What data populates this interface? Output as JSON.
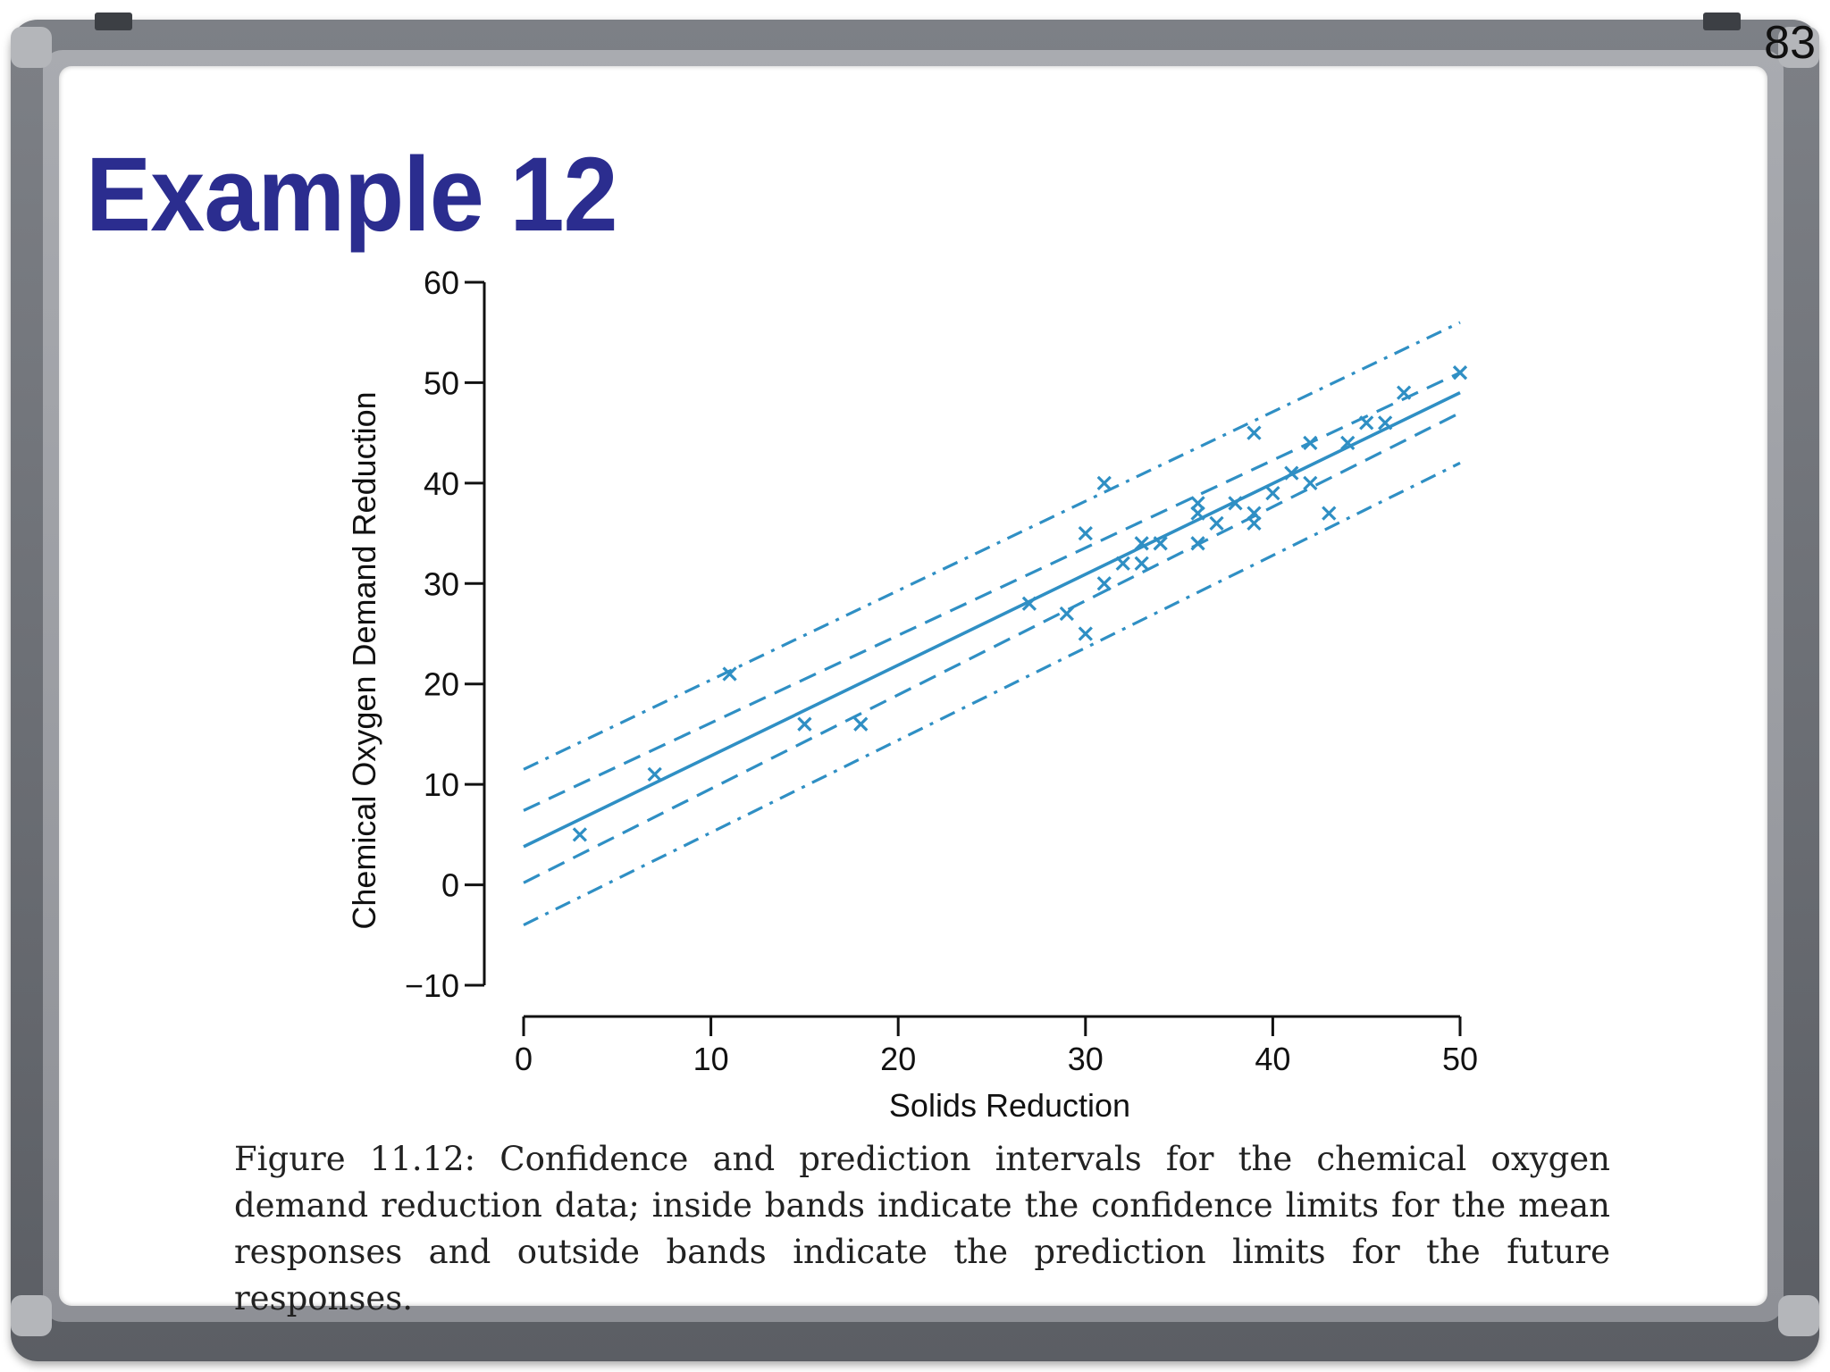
{
  "page_number": "83",
  "slide_title": "Example 12",
  "caption": "Figure 11.12: Confidence and prediction intervals for the chemical oxygen demand reduction data; inside bands indicate the confidence limits for the mean responses and outside bands indicate the prediction limits for the future responses.",
  "colors": {
    "title": "#2b2d8f",
    "series": "#2f8fc4",
    "axis": "#111111"
  },
  "chart_data": {
    "type": "scatter",
    "title": "",
    "xlabel": "Solids Reduction",
    "ylabel": "Chemical Oxygen Demand Reduction",
    "xlim": [
      0,
      50
    ],
    "ylim": [
      -10,
      60
    ],
    "x_ticks": [
      0,
      10,
      20,
      30,
      40,
      50
    ],
    "y_ticks": [
      -10,
      0,
      10,
      20,
      30,
      40,
      50,
      60
    ],
    "x_tick_labels": [
      "0",
      "10",
      "20",
      "30",
      "40",
      "50"
    ],
    "y_tick_labels": [
      "−10",
      "0",
      "10",
      "20",
      "30",
      "40",
      "50",
      "60"
    ],
    "grid": false,
    "points": [
      [
        3,
        5
      ],
      [
        7,
        11
      ],
      [
        11,
        21
      ],
      [
        15,
        16
      ],
      [
        18,
        16
      ],
      [
        27,
        28
      ],
      [
        29,
        27
      ],
      [
        30,
        25
      ],
      [
        30,
        35
      ],
      [
        31,
        30
      ],
      [
        31,
        40
      ],
      [
        32,
        32
      ],
      [
        33,
        32
      ],
      [
        33,
        34
      ],
      [
        34,
        34
      ],
      [
        36,
        34
      ],
      [
        36,
        37
      ],
      [
        36,
        38
      ],
      [
        37,
        36
      ],
      [
        38,
        38
      ],
      [
        39,
        36
      ],
      [
        39,
        37
      ],
      [
        39,
        45
      ],
      [
        40,
        39
      ],
      [
        41,
        41
      ],
      [
        42,
        40
      ],
      [
        42,
        44
      ],
      [
        43,
        37
      ],
      [
        44,
        44
      ],
      [
        45,
        46
      ],
      [
        46,
        46
      ],
      [
        47,
        49
      ],
      [
        50,
        51
      ]
    ],
    "fit_line": {
      "x": [
        0,
        50
      ],
      "y": [
        3.8,
        49
      ]
    },
    "confidence_lower": {
      "x": [
        0,
        50
      ],
      "y": [
        0.2,
        47
      ]
    },
    "confidence_upper": {
      "x": [
        0,
        50
      ],
      "y": [
        7.4,
        51
      ]
    },
    "prediction_lower": {
      "x": [
        0,
        50
      ],
      "y": [
        -4,
        42
      ]
    },
    "prediction_upper": {
      "x": [
        0,
        50
      ],
      "y": [
        11.5,
        56
      ]
    }
  }
}
